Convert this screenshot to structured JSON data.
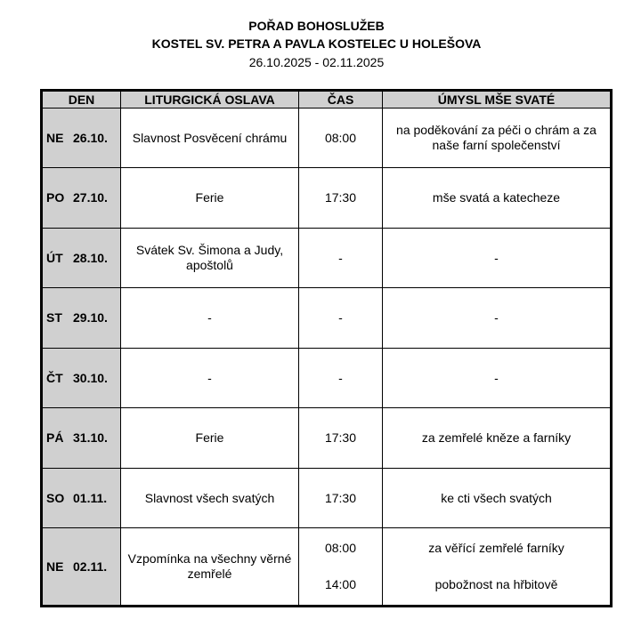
{
  "header": {
    "title": "POŘAD BOHOSLUŽEB",
    "subtitle": "KOSTEL SV. PETRA A PAVLA KOSTELEC U HOLEŠOVA",
    "date_range": "26.10.2025 - 02.11.2025"
  },
  "table": {
    "columns": [
      "DEN",
      "LITURGICKÁ OSLAVA",
      "ČAS",
      "ÚMYSL MŠE SVATÉ"
    ],
    "rows": [
      {
        "day": "NE",
        "date": "26.10.",
        "celebration": "Slavnost Posvěcení chrámu",
        "times": [
          "08:00"
        ],
        "intentions": [
          "na poděkování za péči o chrám a za naše farní společenství"
        ]
      },
      {
        "day": "PO",
        "date": "27.10.",
        "celebration": "Ferie",
        "times": [
          "17:30"
        ],
        "intentions": [
          "mše svatá a katecheze"
        ]
      },
      {
        "day": "ÚT",
        "date": "28.10.",
        "celebration": "Svátek Sv. Šimona a Judy, apoštolů",
        "times": [
          "-"
        ],
        "intentions": [
          "-"
        ]
      },
      {
        "day": "ST",
        "date": "29.10.",
        "celebration": "-",
        "times": [
          "-"
        ],
        "intentions": [
          "-"
        ]
      },
      {
        "day": "ČT",
        "date": "30.10.",
        "celebration": "-",
        "times": [
          "-"
        ],
        "intentions": [
          "-"
        ]
      },
      {
        "day": "PÁ",
        "date": "31.10.",
        "celebration": "Ferie",
        "times": [
          "17:30"
        ],
        "intentions": [
          "za zemřelé kněze a farníky"
        ]
      },
      {
        "day": "SO",
        "date": "01.11.",
        "celebration": "Slavnost všech svatých",
        "times": [
          "17:30"
        ],
        "intentions": [
          "ke cti všech svatých"
        ]
      },
      {
        "day": "NE",
        "date": "02.11.",
        "celebration": "Vzpomínka na všechny věrné zemřelé",
        "times": [
          "08:00",
          "14:00"
        ],
        "intentions": [
          "za věřící zemřelé farníky",
          "pobožnost na hřbitově"
        ]
      }
    ]
  }
}
